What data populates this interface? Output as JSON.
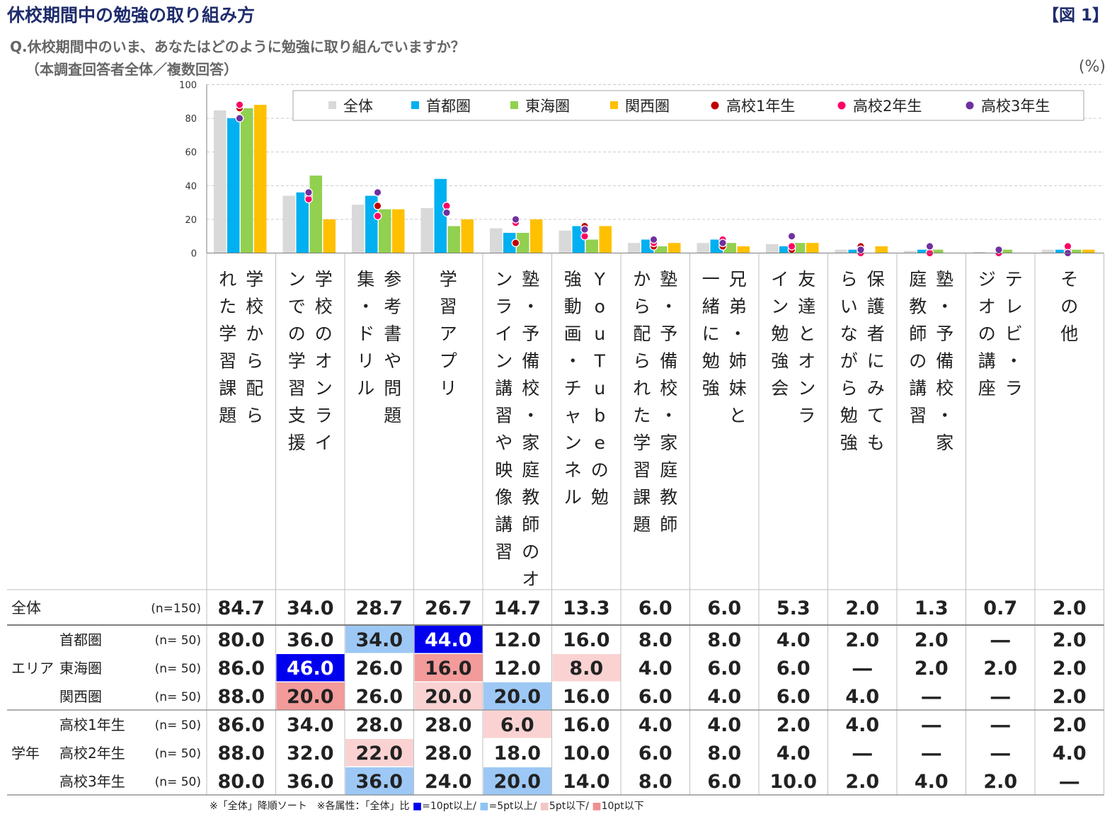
{
  "header": {
    "title": "休校期間中の勉強の取り組み方",
    "figure_label": "【図 1】",
    "question": "Q.休校期間中のいま、あなたはどのように勉強に取り組んでいますか？",
    "subtitle": "（本調査回答者全体／複数回答）",
    "unit": "(%)"
  },
  "colors": {
    "全体": "#d9d9d9",
    "首都圏": "#00b0f0",
    "東海圏": "#92d050",
    "関西圏": "#ffc000",
    "高校1年生": "#c00000",
    "高校2年生": "#ff0066",
    "高校3年生": "#7030a0",
    "plus10": "#0000ee",
    "plus5": "#9dc8f5",
    "minus5": "#fad2d2",
    "minus10": "#f39a9a"
  },
  "chart_data": {
    "type": "bar",
    "ylim": [
      0,
      100
    ],
    "yticks": [
      "0",
      "20",
      "40",
      "60",
      "80",
      "100"
    ],
    "legend_position": "top-right",
    "categories": [
      "学校から配られた学習課題",
      "学校のオンラインでの学習支援",
      "参考書や問題集・ドリル",
      "学習アプリ",
      "塾・予備校・家庭教師のオンライン講習や映像講習",
      "YouTubeの勉強動画・チャンネル",
      "塾・予備校・家庭教師から配られた学習課題",
      "兄弟・姉妹と一緒に勉強",
      "友達とオンライン勉強会",
      "保護者にみてもらいながら勉強",
      "塾・予備校・家庭教師の講習",
      "テレビ・ラジオの講座",
      "その他"
    ],
    "series": [
      {
        "name": "全体",
        "mark": "bar",
        "values": [
          84.7,
          34.0,
          28.7,
          26.7,
          14.7,
          13.3,
          6.0,
          6.0,
          5.3,
          2.0,
          1.3,
          0.7,
          2.0
        ]
      },
      {
        "name": "首都圏",
        "mark": "bar",
        "values": [
          80.0,
          36.0,
          34.0,
          44.0,
          12.0,
          16.0,
          8.0,
          8.0,
          4.0,
          2.0,
          2.0,
          0,
          2.0
        ]
      },
      {
        "name": "東海圏",
        "mark": "bar",
        "values": [
          86.0,
          46.0,
          26.0,
          16.0,
          12.0,
          8.0,
          4.0,
          6.0,
          6.0,
          0,
          2.0,
          2.0,
          2.0
        ]
      },
      {
        "name": "関西圏",
        "mark": "bar",
        "values": [
          88.0,
          20.0,
          26.0,
          20.0,
          20.0,
          16.0,
          6.0,
          4.0,
          6.0,
          4.0,
          0,
          0,
          2.0
        ]
      },
      {
        "name": "高校1年生",
        "mark": "dot",
        "values": [
          86.0,
          34.0,
          28.0,
          28.0,
          6.0,
          16.0,
          4.0,
          4.0,
          2.0,
          4.0,
          0,
          0,
          2.0
        ]
      },
      {
        "name": "高校2年生",
        "mark": "dot",
        "values": [
          88.0,
          32.0,
          22.0,
          28.0,
          18.0,
          10.0,
          6.0,
          8.0,
          4.0,
          0,
          0,
          0,
          4.0
        ]
      },
      {
        "name": "高校3年生",
        "mark": "dot",
        "values": [
          80.0,
          36.0,
          36.0,
          24.0,
          20.0,
          14.0,
          8.0,
          6.0,
          10.0,
          2.0,
          4.0,
          2.0,
          0
        ]
      }
    ]
  },
  "table": {
    "rows": [
      {
        "group": "",
        "label": "全体",
        "n": "(n=150)",
        "cells": [
          "84.7",
          "34.0",
          "28.7",
          "26.7",
          "14.7",
          "13.3",
          "6.0",
          "6.0",
          "5.3",
          "2.0",
          "1.3",
          "0.7",
          "2.0"
        ],
        "hl": [
          "",
          "",
          "",
          "",
          "",
          "",
          "",
          "",
          "",
          "",
          "",
          "",
          ""
        ]
      },
      {
        "group": "エリア",
        "label": "首都圏",
        "n": "(n=  50)",
        "cells": [
          "80.0",
          "36.0",
          "34.0",
          "44.0",
          "12.0",
          "16.0",
          "8.0",
          "8.0",
          "4.0",
          "2.0",
          "2.0",
          "―",
          "2.0"
        ],
        "hl": [
          "",
          "",
          "plus5",
          "plus10",
          "",
          "",
          "",
          "",
          "",
          "",
          "",
          "",
          ""
        ]
      },
      {
        "group": "",
        "label": "東海圏",
        "n": "(n=  50)",
        "cells": [
          "86.0",
          "46.0",
          "26.0",
          "16.0",
          "12.0",
          "8.0",
          "4.0",
          "6.0",
          "6.0",
          "―",
          "2.0",
          "2.0",
          "2.0"
        ],
        "hl": [
          "",
          "plus10",
          "",
          "minus10",
          "",
          "minus5",
          "",
          "",
          "",
          "",
          "",
          "",
          ""
        ]
      },
      {
        "group": "",
        "label": "関西圏",
        "n": "(n=  50)",
        "cells": [
          "88.0",
          "20.0",
          "26.0",
          "20.0",
          "20.0",
          "16.0",
          "6.0",
          "4.0",
          "6.0",
          "4.0",
          "―",
          "―",
          "2.0"
        ],
        "hl": [
          "",
          "minus10",
          "",
          "minus5",
          "plus5",
          "",
          "",
          "",
          "",
          "",
          "",
          "",
          ""
        ]
      },
      {
        "group": "学年",
        "label": "高校1年生",
        "n": "(n=  50)",
        "cells": [
          "86.0",
          "34.0",
          "28.0",
          "28.0",
          "6.0",
          "16.0",
          "4.0",
          "4.0",
          "2.0",
          "4.0",
          "―",
          "―",
          "2.0"
        ],
        "hl": [
          "",
          "",
          "",
          "",
          "minus5",
          "",
          "",
          "",
          "",
          "",
          "",
          "",
          ""
        ]
      },
      {
        "group": "",
        "label": "高校2年生",
        "n": "(n=  50)",
        "cells": [
          "88.0",
          "32.0",
          "22.0",
          "28.0",
          "18.0",
          "10.0",
          "6.0",
          "8.0",
          "4.0",
          "―",
          "―",
          "―",
          "4.0"
        ],
        "hl": [
          "",
          "",
          "minus5",
          "",
          "",
          "",
          "",
          "",
          "",
          "",
          "",
          "",
          ""
        ]
      },
      {
        "group": "",
        "label": "高校3年生",
        "n": "(n=  50)",
        "cells": [
          "80.0",
          "36.0",
          "36.0",
          "24.0",
          "20.0",
          "14.0",
          "8.0",
          "6.0",
          "10.0",
          "2.0",
          "4.0",
          "2.0",
          "―"
        ],
        "hl": [
          "",
          "",
          "plus5",
          "",
          "plus5",
          "",
          "",
          "",
          "",
          "",
          "",
          "",
          ""
        ]
      }
    ]
  },
  "footnote": {
    "part1": "※「全体」降順ソート　※各属性：「全体」比",
    "k1_mark": "■",
    "k1_label": "=10pt以上/",
    "k2_mark": "■",
    "k2_label": "=5pt以上/",
    "k3_mark": "■",
    "k3_label": "5pt以下/",
    "k4_mark": "■",
    "k4_label": "10pt以下"
  }
}
